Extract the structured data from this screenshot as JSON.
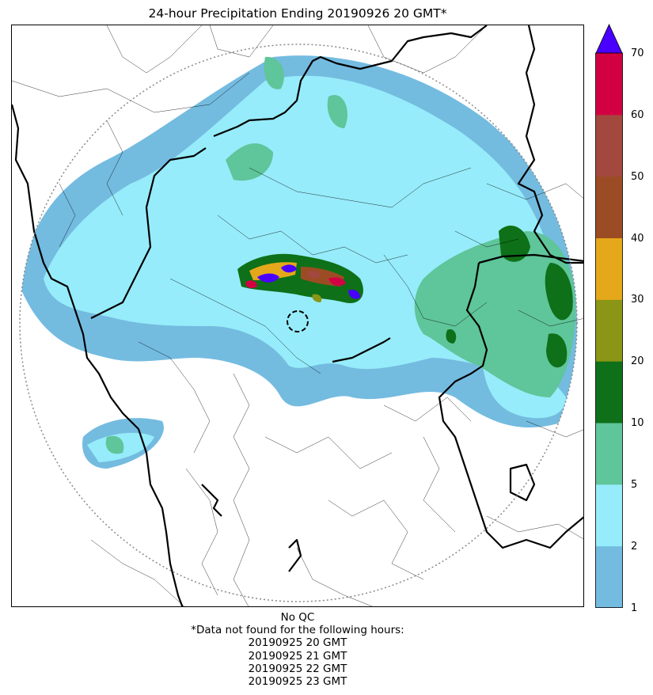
{
  "title": "24-hour Precipitation Ending 20190926 20 GMT*",
  "colorbar": {
    "ticks": [
      "1",
      "2",
      "5",
      "10",
      "20",
      "30",
      "40",
      "50",
      "60",
      "70"
    ],
    "colors": [
      "#74bbe0",
      "#96ecfa",
      "#5fc59a",
      "#0e7018",
      "#8b9616",
      "#e5a81b",
      "#9c4c24",
      "#a3483e",
      "#d20043"
    ],
    "extend_color": "#4a00ff"
  },
  "footer": {
    "qc": "No QC",
    "missing_heading": "*Data not found for the following hours:",
    "missing_hours": [
      "20190925 20 GMT",
      "20190925 21 GMT",
      "20190925 22 GMT",
      "20190925 23 GMT"
    ]
  }
}
